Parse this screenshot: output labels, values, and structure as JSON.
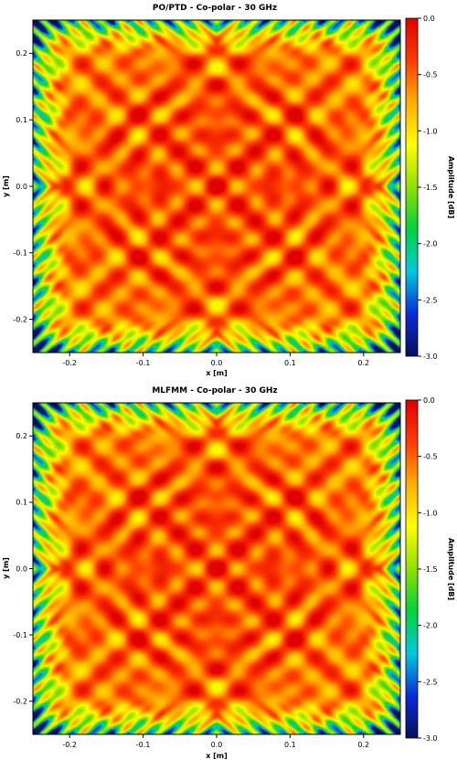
{
  "chart_data": [
    {
      "type": "heatmap",
      "title": "PO/PTD - Co-polar - 30 GHz",
      "xlabel": "x [m]",
      "ylabel": "y [m]",
      "xlim": [
        -0.25,
        0.25
      ],
      "ylim": [
        -0.25,
        0.25
      ],
      "x_ticks": [
        -0.2,
        -0.1,
        0.0,
        0.1,
        0.2
      ],
      "x_tick_labels": [
        "-0.2",
        "-0.1",
        "0.0",
        "0.1",
        "0.2"
      ],
      "y_ticks": [
        0.2,
        0.1,
        0.0,
        -0.1,
        -0.2
      ],
      "y_tick_labels": [
        "0.2",
        "0.1",
        "0.0",
        "-0.1",
        "-0.2"
      ],
      "colorbar": {
        "label": "Amplitude [dB]",
        "range": [
          -3.0,
          0.0
        ],
        "ticks": [
          0.0,
          -0.5,
          -1.0,
          -1.5,
          -2.0,
          -2.5,
          -3.0
        ],
        "tick_labels": [
          "0.0",
          "-0.5",
          "-1.0",
          "-1.5",
          "-2.0",
          "-2.5",
          "-3.0"
        ],
        "colormap": [
          "#08105a",
          "#0a2bd6",
          "#00c8e0",
          "#00d23c",
          "#8fe000",
          "#ffff00",
          "#ffb000",
          "#ff3c00",
          "#e00000"
        ]
      },
      "grid": false
    },
    {
      "type": "heatmap",
      "title": "MLFMM - Co-polar - 30 GHz",
      "xlabel": "x [m]",
      "ylabel": "y [m]",
      "xlim": [
        -0.25,
        0.25
      ],
      "ylim": [
        -0.25,
        0.25
      ],
      "x_ticks": [
        -0.2,
        -0.1,
        0.0,
        0.1,
        0.2
      ],
      "x_tick_labels": [
        "-0.2",
        "-0.1",
        "0.0",
        "0.1",
        "0.2"
      ],
      "y_ticks": [
        0.2,
        0.1,
        0.0,
        -0.1,
        -0.2
      ],
      "y_tick_labels": [
        "0.2",
        "0.1",
        "0.0",
        "-0.1",
        "-0.2"
      ],
      "colorbar": {
        "label": "Amplitude [dB]",
        "range": [
          -3.0,
          0.0
        ],
        "ticks": [
          0.0,
          -0.5,
          -1.0,
          -1.5,
          -2.0,
          -2.5,
          -3.0
        ],
        "tick_labels": [
          "0.0",
          "-0.5",
          "-1.0",
          "-1.5",
          "-2.0",
          "-2.5",
          "-3.0"
        ],
        "colormap": [
          "#08105a",
          "#0a2bd6",
          "#00c8e0",
          "#00d23c",
          "#8fe000",
          "#ffff00",
          "#ffb000",
          "#ff3c00",
          "#e00000"
        ]
      },
      "grid": false
    }
  ]
}
